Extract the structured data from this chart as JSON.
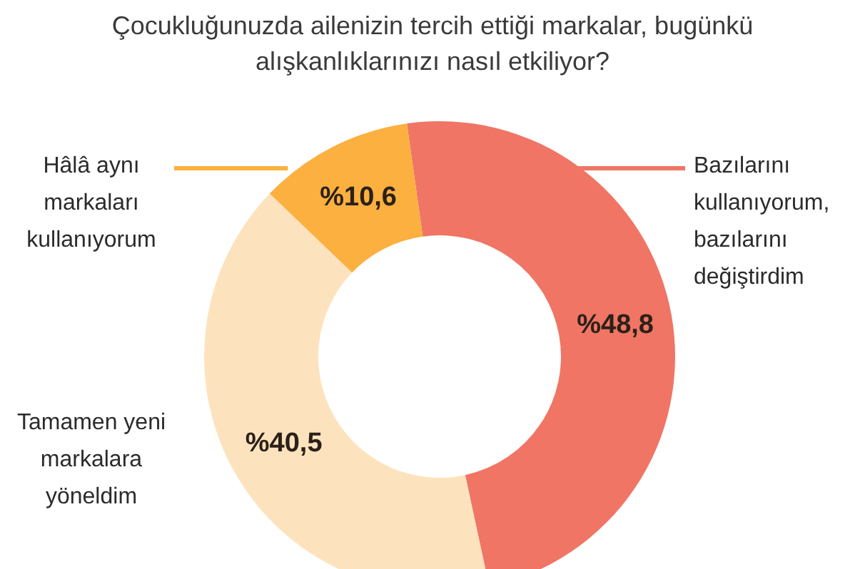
{
  "chart_data": {
    "type": "donut",
    "title": "Çocukluğunuzda ailenizin tercih ettiği markalar, bugünkü alışkanlıklarınızı nasıl etkiliyor?",
    "categories": [
      "Bazılarını kullanıyorum, bazılarını değiştirdim",
      "Tamamen yeni markalara yöneldim",
      "Hâlâ aynı markaları kullanıyorum"
    ],
    "values": [
      48.8,
      40.5,
      10.6
    ],
    "colors": [
      "#f07565",
      "#fde3bd",
      "#fbb040"
    ],
    "value_labels": [
      "%48,8",
      "%40,5",
      "%10,6"
    ],
    "legend": false
  }
}
